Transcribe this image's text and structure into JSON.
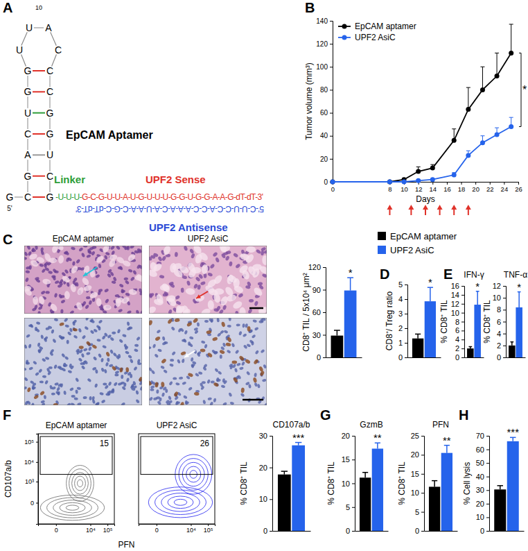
{
  "panel_labels": [
    "A",
    "B",
    "C",
    "D",
    "E",
    "F",
    "G",
    "H"
  ],
  "diagram": {
    "loop_number": "10",
    "loop": [
      "U",
      "U",
      "A",
      "C"
    ],
    "left_stem": [
      "G",
      "G",
      "U",
      "C",
      "A",
      "G",
      "C"
    ],
    "right_stem": [
      "C",
      "C",
      "G",
      "G",
      "U",
      "C",
      "G"
    ],
    "base_5prime": "G",
    "five_prime": "5'",
    "linker": "-U-U-U-",
    "sense": "G-C-G-U-U-A-U-G-U-U-U-G-G-U-G-G-A-A-G-dT-dT-3'",
    "antisense": "5'-C-U-U-C-C-A-C-C-A-A-A-C-A-U-A-A-C-G-C-dT-dT-3'",
    "labels": {
      "aptamer": "EpCAM Aptamer",
      "linker": "Linker",
      "sense": "UPF2 Sense",
      "antisense": "UPF2 Antisense"
    }
  },
  "histology": {
    "titles": [
      "EpCAM aptamer",
      "UPF2 AsiC"
    ]
  },
  "flow_plots": {
    "y_label": "CD107a/b",
    "x_label": "PFN",
    "xlim": [
      -1000,
      250000
    ],
    "ylim": [
      -1000,
      250000
    ],
    "xticks": [
      0,
      {
        "value": 10000,
        "label": "10⁴"
      },
      {
        "value": 100000,
        "label": "10⁵"
      }
    ],
    "yticks": [
      0,
      {
        "value": 1000,
        "label": "10³"
      },
      {
        "value": 10000,
        "label": "10⁴"
      },
      {
        "value": 100000,
        "label": "10⁵"
      }
    ],
    "plots": [
      {
        "title": "EpCAM aptamer",
        "gate_value": 15,
        "color": "#777777"
      },
      {
        "title": "UPF2 AsiC",
        "gate_value": 26,
        "color": "#3b3bf0"
      }
    ]
  },
  "chart_data": [
    {
      "type": "line",
      "x_label": "Days",
      "y_label": "Tumor volume (mm³)",
      "x": [
        0,
        8,
        10,
        12,
        14,
        17,
        19,
        21,
        23,
        25
      ],
      "xlim": [
        0,
        26
      ],
      "xticks": [
        0,
        8,
        10,
        12,
        14,
        16,
        18,
        20,
        22,
        24,
        26
      ],
      "ylim": [
        0,
        140
      ],
      "yticks": [
        0,
        20,
        40,
        60,
        80,
        100,
        120,
        140
      ],
      "series": [
        {
          "name": "EpCAM aptamer",
          "color": "#000000",
          "marker": "circle",
          "values": [
            0,
            0,
            2,
            9,
            12,
            36,
            63,
            80,
            92,
            112
          ],
          "errors": [
            0,
            0,
            1,
            4,
            3,
            10,
            19,
            20,
            20,
            25
          ]
        },
        {
          "name": "UPF2 AsiC",
          "color": "#2563eb",
          "marker": "circle",
          "values": [
            0,
            0,
            0,
            1,
            2,
            6,
            23,
            34,
            41,
            48
          ],
          "errors": [
            0,
            0,
            0,
            1,
            1,
            2,
            4,
            6,
            6,
            8
          ]
        }
      ],
      "legend": "top-left",
      "treatment_days": [
        8,
        11,
        13,
        15,
        17,
        19
      ],
      "annotation": "*"
    },
    {
      "type": "bar",
      "y_label": "CD8⁺ TIL / 5x10⁴ μm²",
      "categories": [
        null
      ],
      "ylim": [
        0,
        120
      ],
      "yticks": [
        0,
        30,
        60,
        90,
        120
      ],
      "series": [
        {
          "name": "EpCAM aptamer",
          "color": "#000000",
          "values": [
            29
          ],
          "errors": [
            7
          ]
        },
        {
          "name": "UPF2 AsiC",
          "color": "#2563eb",
          "values": [
            89
          ],
          "errors": [
            17
          ]
        }
      ],
      "legend": "top",
      "annotation": "*"
    },
    {
      "type": "bar",
      "y_label": "CD8⁺/ Treg ratio",
      "categories": [
        null
      ],
      "ylim": [
        0,
        5
      ],
      "yticks": [
        0,
        1,
        2,
        3,
        4,
        5
      ],
      "series": [
        {
          "color": "#000000",
          "values": [
            1.3
          ],
          "errors": [
            0.3
          ]
        },
        {
          "color": "#2563eb",
          "values": [
            3.85
          ],
          "errors": [
            0.95
          ]
        }
      ],
      "annotation": "*"
    },
    {
      "type": "bar",
      "title": "IFN-γ",
      "y_label": "% CD8⁺ TIL",
      "categories": [
        null
      ],
      "ylim": [
        0,
        16
      ],
      "yticks": [
        0,
        2,
        4,
        6,
        8,
        10,
        12,
        14,
        16
      ],
      "series": [
        {
          "color": "#000000",
          "values": [
            2.0
          ],
          "errors": [
            0.4
          ]
        },
        {
          "color": "#2563eb",
          "values": [
            11.8
          ],
          "errors": [
            3.0
          ]
        }
      ],
      "annotation": "*"
    },
    {
      "type": "bar",
      "title": "TNF-α",
      "y_label": "% CD8⁺ TIL",
      "categories": [
        null
      ],
      "ylim": [
        0,
        12
      ],
      "yticks": [
        0,
        2,
        4,
        6,
        8,
        10,
        12
      ],
      "series": [
        {
          "color": "#000000",
          "values": [
            2.0
          ],
          "errors": [
            0.6
          ]
        },
        {
          "color": "#2563eb",
          "values": [
            8.4
          ],
          "errors": [
            2.6
          ]
        }
      ],
      "annotation": "*"
    },
    {
      "type": "bar",
      "title": "CD107a/b",
      "y_label": "% CD8⁺ TIL",
      "categories": [
        null
      ],
      "ylim": [
        0,
        30
      ],
      "yticks": [
        0,
        10,
        20,
        30
      ],
      "series": [
        {
          "color": "#000000",
          "values": [
            17.8
          ],
          "errors": [
            1.0
          ]
        },
        {
          "color": "#2563eb",
          "values": [
            27.0
          ],
          "errors": [
            0.9
          ]
        }
      ],
      "annotation": "***"
    },
    {
      "type": "bar",
      "title": "GzmB",
      "y_label": "% CD8⁺ TIL",
      "categories": [
        null
      ],
      "ylim": [
        0,
        20
      ],
      "yticks": [
        0,
        5,
        10,
        15,
        20
      ],
      "series": [
        {
          "color": "#000000",
          "values": [
            11.2
          ],
          "errors": [
            1.1
          ]
        },
        {
          "color": "#2563eb",
          "values": [
            17.3
          ],
          "errors": [
            1.2
          ]
        }
      ],
      "annotation": "**"
    },
    {
      "type": "bar",
      "title": "PFN",
      "y_label": "% CD8⁺ TIL",
      "categories": [
        null
      ],
      "ylim": [
        0,
        25
      ],
      "yticks": [
        0,
        5,
        10,
        15,
        20,
        25
      ],
      "series": [
        {
          "color": "#000000",
          "values": [
            11.6
          ],
          "errors": [
            1.6
          ]
        },
        {
          "color": "#2563eb",
          "values": [
            20.5
          ],
          "errors": [
            2.0
          ]
        }
      ],
      "annotation": "**"
    },
    {
      "type": "bar",
      "y_label": "% Cell lysis",
      "categories": [
        null
      ],
      "ylim": [
        0,
        70
      ],
      "yticks": [
        0,
        10,
        20,
        30,
        40,
        50,
        60,
        70
      ],
      "series": [
        {
          "color": "#000000",
          "values": [
            30.5
          ],
          "errors": [
            2.8
          ]
        },
        {
          "color": "#2563eb",
          "values": [
            66.0
          ],
          "errors": [
            2.8
          ]
        }
      ],
      "annotation": "***"
    }
  ]
}
